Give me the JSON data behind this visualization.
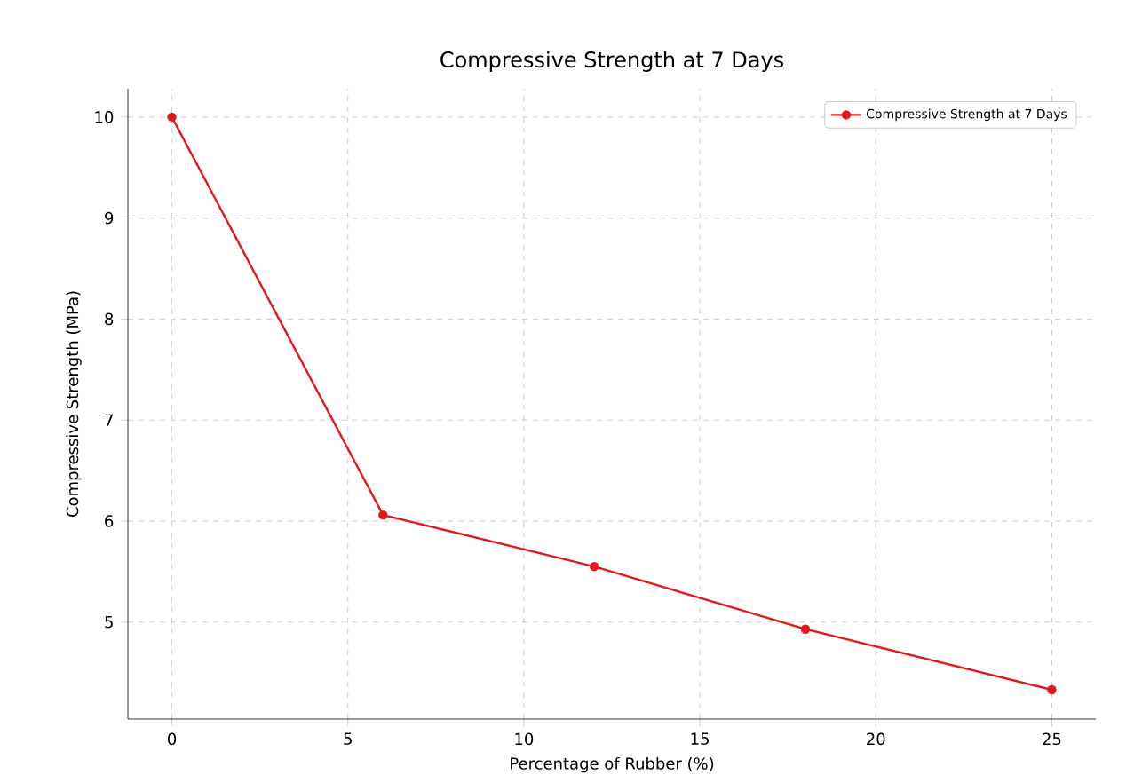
{
  "chart_data": {
    "type": "line",
    "title": "Compressive Strength at 7 Days",
    "xlabel": "Percentage of Rubber (%)",
    "ylabel": "Compressive Strength (MPa)",
    "x": [
      0,
      6,
      12,
      18,
      25
    ],
    "series": [
      {
        "name": "Compressive Strength at 7 Days",
        "color": "#e31a1c",
        "values": [
          10,
          6.06,
          5.55,
          4.93,
          4.33
        ]
      }
    ],
    "xlim": [
      -1.25,
      26.25
    ],
    "ylim": [
      4.04,
      10.28
    ],
    "xticks": [
      0,
      5,
      10,
      15,
      20,
      25
    ],
    "yticks": [
      5,
      6,
      7,
      8,
      9,
      10
    ],
    "grid": true,
    "legend": "top right",
    "marker": "circle",
    "line_style": "solid"
  }
}
